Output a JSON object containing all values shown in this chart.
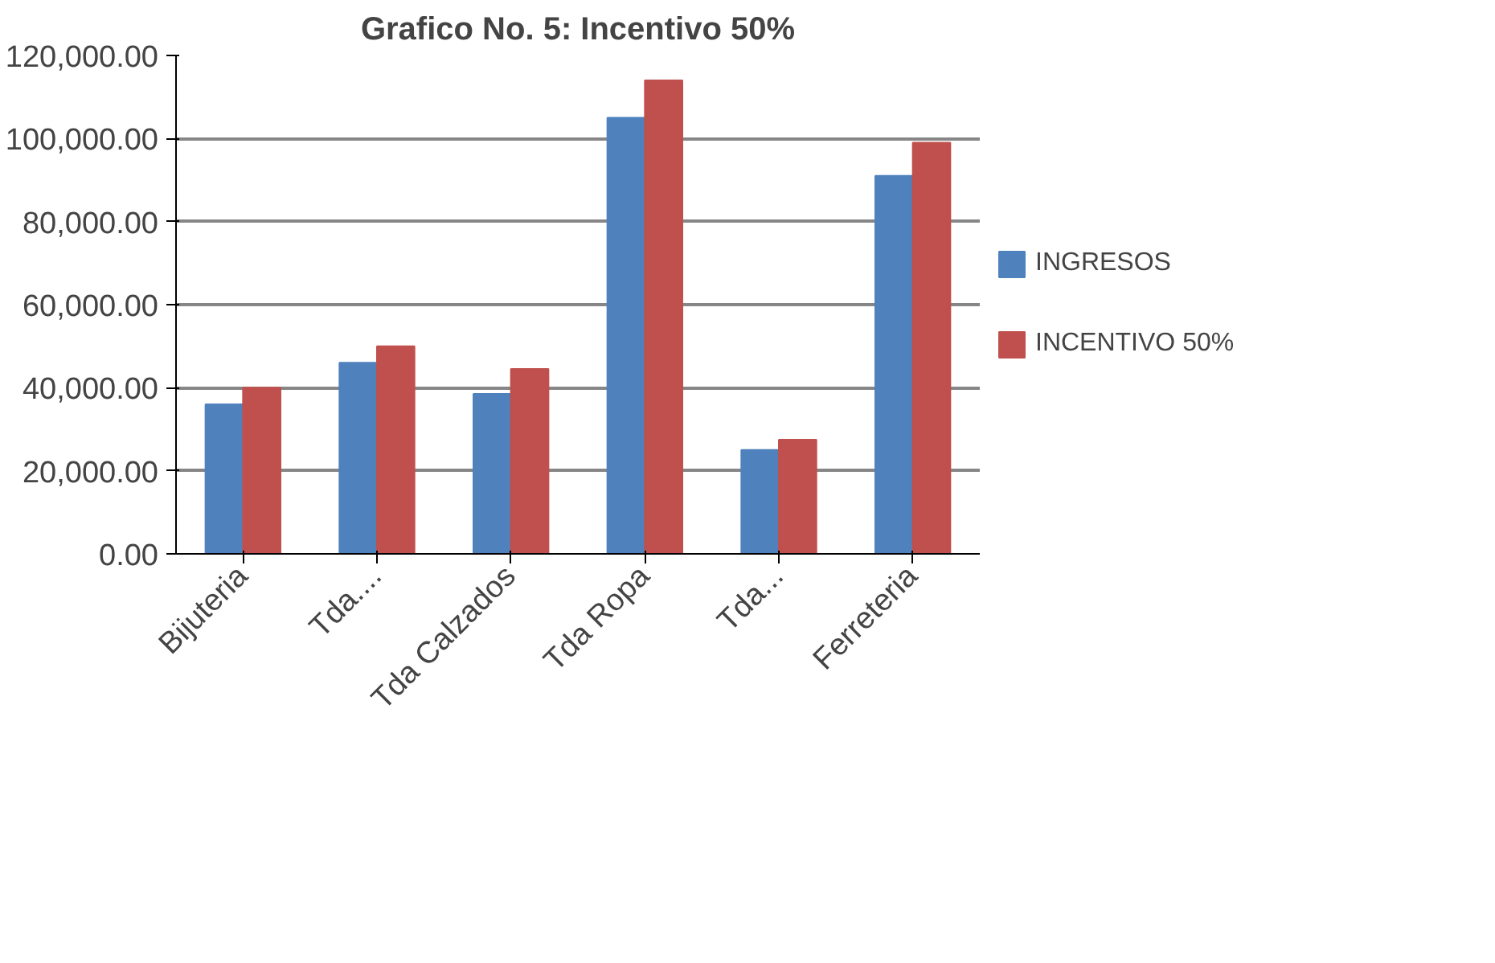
{
  "chart_data": {
    "type": "bar",
    "title": "Grafico No. 5: Incentivo 50%",
    "categories": [
      "Bijuteria",
      "Tda....",
      "Tda Calzados",
      "Tda Ropa",
      "Tda...",
      "Ferreteria"
    ],
    "series": [
      {
        "name": "INGRESOS",
        "color": "#4f81bd",
        "values": [
          36000,
          46000,
          38500,
          105000,
          25000,
          91000
        ]
      },
      {
        "name": "INCENTIVO 50%",
        "color": "#c0504d",
        "values": [
          40000,
          50000,
          44500,
          114000,
          27500,
          99000
        ]
      }
    ],
    "ylim": [
      0,
      120000
    ],
    "yticks": [
      {
        "value": 0,
        "label": "0.00"
      },
      {
        "value": 20000,
        "label": "20,000.00"
      },
      {
        "value": 40000,
        "label": "40,000.00"
      },
      {
        "value": 60000,
        "label": "60,000.00"
      },
      {
        "value": 80000,
        "label": "80,000.00"
      },
      {
        "value": 100000,
        "label": "100,000.00"
      },
      {
        "value": 120000,
        "label": "120,000.00"
      }
    ],
    "grid": "y",
    "legend": "right"
  }
}
